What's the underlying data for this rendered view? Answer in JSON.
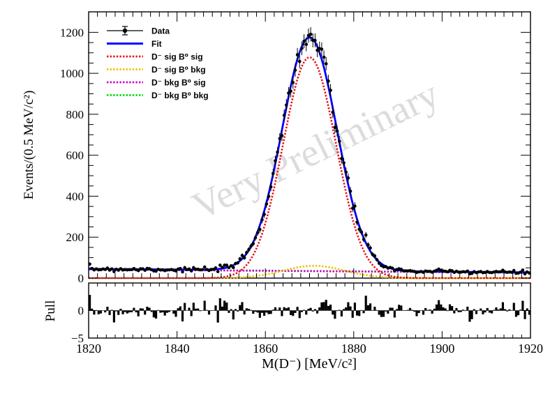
{
  "chart_data": {
    "type": "line",
    "watermark": "Very Preliminary",
    "xlabel": "M(D⁻) [MeV/c²]",
    "xlim": [
      1820,
      1920
    ],
    "x_ticks": [
      "1820",
      "1840",
      "1860",
      "1880",
      "1900",
      "1920"
    ],
    "main": {
      "ylabel": "Events/(0.5 MeV/c²)",
      "ylim": [
        0,
        1300
      ],
      "y_ticks": [
        "0",
        "200",
        "400",
        "600",
        "800",
        "1000",
        "1200"
      ],
      "legend_position": "top-left",
      "series": [
        {
          "name": "Data",
          "style": "points-with-errors",
          "color": "#000000"
        },
        {
          "name": "Fit",
          "style": "solid",
          "color": "#0000ff",
          "peak_x": 1870,
          "peak_y": 1175,
          "sigma": 6.2,
          "baseline_left": 45,
          "baseline_right": 28
        },
        {
          "name": "D⁻ sig B⁰ sig",
          "style": "dotted",
          "color": "#e8141a",
          "peak_x": 1870,
          "peak_y": 1078,
          "sigma": 6.0
        },
        {
          "name": "D⁻ sig B⁰ bkg",
          "style": "dotted",
          "color": "#f0c000",
          "peak_x": 1871,
          "peak_y": 60,
          "sigma": 7.0
        },
        {
          "name": "D⁻ bkg B⁰ sig",
          "style": "dotted",
          "color": "#cc00cc",
          "baseline_left": 42,
          "baseline_right": 26
        },
        {
          "name": "D⁻ bkg B⁰ bkg",
          "style": "dotted",
          "color": "#00dd00",
          "baseline_left": 43,
          "baseline_right": 27
        }
      ]
    },
    "pull": {
      "ylabel": "Pull",
      "ylim": [
        -5,
        5
      ],
      "y_ticks": [
        "−5",
        "0"
      ]
    }
  }
}
